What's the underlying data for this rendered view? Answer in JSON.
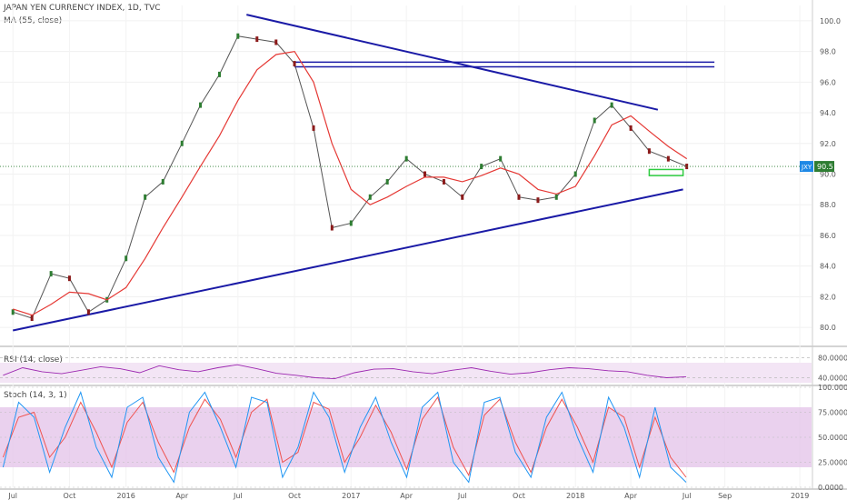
{
  "header": {
    "title": "JAPAN YEN CURRENCY INDEX, 1D, TVC",
    "ma_label": "MA (55, close)",
    "rsi_label": "RSI (14, close)",
    "stoch_label": "Stoch (14, 3, 1)"
  },
  "price_badge": {
    "symbol": "JXY",
    "value": "90.5"
  },
  "colors": {
    "up_candle": "#2e7d32",
    "down_candle": "#8b1a1a",
    "ma_line": "#e53935",
    "trendline": "#1a1aa6",
    "support_box": "#2ecc40",
    "rsi_line": "#9c27b0",
    "stoch_k": "#2196f3",
    "stoch_d": "#ef5350",
    "stoch_band": "#e1bee7"
  },
  "x_axis_labels": [
    "Jul",
    "Oct",
    "2016",
    "Apr",
    "Jul",
    "Oct",
    "2017",
    "Apr",
    "Jul",
    "Oct",
    "2018",
    "Apr",
    "Jul",
    "Sep",
    "2019"
  ],
  "chart_data": [
    {
      "type": "line",
      "title": "JAPAN YEN CURRENCY INDEX, 1D, TVC",
      "ylim": [
        79,
        101
      ],
      "yticks": [
        "80.0",
        "82.0",
        "84.0",
        "86.0",
        "88.0",
        "90.0",
        "92.0",
        "94.0",
        "96.0",
        "98.0",
        "100.0"
      ],
      "x_dates": [
        "2015-07-01",
        "2015-08-01",
        "2015-09-01",
        "2015-10-01",
        "2015-11-01",
        "2015-12-01",
        "2016-01-01",
        "2016-02-01",
        "2016-03-01",
        "2016-04-01",
        "2016-05-01",
        "2016-06-01",
        "2016-07-01",
        "2016-08-01",
        "2016-09-01",
        "2016-10-01",
        "2016-11-01",
        "2016-12-01",
        "2017-01-01",
        "2017-02-01",
        "2017-03-01",
        "2017-04-01",
        "2017-05-01",
        "2017-06-01",
        "2017-07-01",
        "2017-08-01",
        "2017-09-01",
        "2017-10-01",
        "2017-11-01",
        "2017-12-01",
        "2018-01-01",
        "2018-02-01",
        "2018-03-01",
        "2018-04-01",
        "2018-05-01",
        "2018-06-01",
        "2018-07-01"
      ],
      "series": [
        {
          "name": "JXY",
          "values": [
            81.0,
            80.6,
            83.5,
            83.2,
            81.0,
            81.8,
            84.5,
            88.5,
            89.5,
            92.0,
            94.5,
            96.5,
            99.0,
            98.8,
            98.6,
            97.2,
            93.0,
            86.5,
            86.8,
            88.5,
            89.5,
            91.0,
            90.0,
            89.5,
            88.5,
            90.5,
            91.0,
            88.5,
            88.3,
            88.5,
            90.0,
            93.5,
            94.5,
            93.0,
            91.5,
            91.0,
            90.5
          ]
        },
        {
          "name": "MA (55, close)",
          "values": [
            81.2,
            80.8,
            81.5,
            82.3,
            82.2,
            81.8,
            82.6,
            84.5,
            86.5,
            88.5,
            90.5,
            92.5,
            94.8,
            96.8,
            97.8,
            98.0,
            96.0,
            92.0,
            89.0,
            88.0,
            88.5,
            89.2,
            89.8,
            89.8,
            89.5,
            89.9,
            90.4,
            90.0,
            89.0,
            88.7,
            89.2,
            91.2,
            93.2,
            93.8,
            92.8,
            91.8,
            91.0
          ]
        }
      ],
      "last_value": 90.5,
      "annotations": {
        "upper_trendline": [
          [
            "2016-07-15",
            100.4
          ],
          [
            "2018-05-15",
            94.2
          ]
        ],
        "lower_trendline": [
          [
            "2015-07-01",
            79.8
          ],
          [
            "2018-06-25",
            89.0
          ]
        ],
        "resistance_lines": [
          97.0,
          97.3
        ],
        "support_zone": [
          89.9,
          90.3
        ]
      }
    },
    {
      "type": "line",
      "title": "RSI (14, close)",
      "yticks": [
        "40.0000",
        "80.0000"
      ],
      "series": [
        {
          "name": "RSI (14, close)",
          "values": [
            45,
            60,
            52,
            48,
            55,
            62,
            58,
            50,
            64,
            56,
            52,
            60,
            66,
            58,
            49,
            45,
            40,
            38,
            50,
            57,
            58,
            52,
            48,
            55,
            60,
            53,
            47,
            50,
            56,
            60,
            58,
            54,
            52,
            45,
            40,
            42
          ]
        }
      ]
    },
    {
      "type": "line",
      "title": "Stoch (14, 3, 1)",
      "ylim": [
        0,
        100
      ],
      "yticks": [
        "0.0000",
        "25.0000",
        "50.0000",
        "75.0000",
        "100.0000"
      ],
      "band": [
        20,
        80
      ],
      "series": [
        {
          "name": "%K",
          "values": [
            20,
            85,
            70,
            15,
            60,
            95,
            40,
            10,
            80,
            90,
            30,
            5,
            75,
            95,
            60,
            20,
            90,
            85,
            10,
            40,
            95,
            70,
            15,
            60,
            90,
            45,
            10,
            80,
            95,
            25,
            5,
            85,
            90,
            35,
            10,
            70,
            95,
            50,
            15,
            90,
            60,
            10,
            80,
            20,
            5
          ]
        },
        {
          "name": "%D",
          "values": [
            30,
            70,
            75,
            30,
            50,
            85,
            55,
            20,
            65,
            85,
            45,
            15,
            60,
            88,
            68,
            30,
            75,
            88,
            25,
            35,
            85,
            78,
            25,
            50,
            82,
            55,
            18,
            68,
            90,
            40,
            12,
            72,
            88,
            45,
            15,
            60,
            88,
            60,
            25,
            80,
            70,
            20,
            70,
            30,
            10
          ]
        }
      ]
    }
  ]
}
